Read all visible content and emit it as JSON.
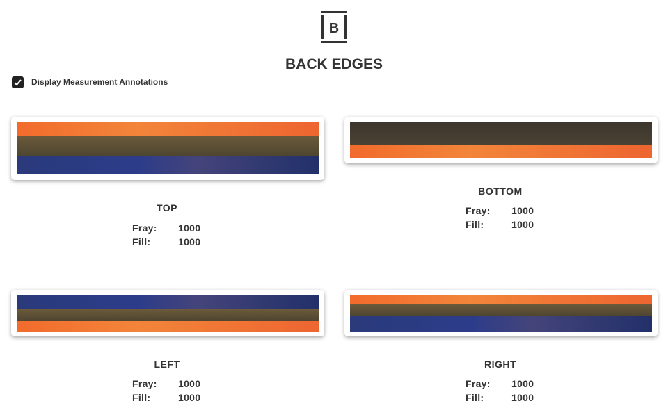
{
  "header": {
    "logo_letter": "B",
    "title": "BACK EDGES"
  },
  "options": {
    "annotations_label": "Display Measurement Annotations",
    "annotations_checked": true
  },
  "edges": [
    {
      "name": "TOP",
      "fray_label": "Fray:",
      "fray": "1000",
      "fill_label": "Fill:",
      "fill": "1000"
    },
    {
      "name": "BOTTOM",
      "fray_label": "Fray:",
      "fray": "1000",
      "fill_label": "Fill:",
      "fill": "1000"
    },
    {
      "name": "LEFT",
      "fray_label": "Fray:",
      "fray": "1000",
      "fill_label": "Fill:",
      "fill": "1000"
    },
    {
      "name": "RIGHT",
      "fray_label": "Fray:",
      "fray": "1000",
      "fill_label": "Fill:",
      "fill": "1000"
    }
  ],
  "colors": {
    "accent": "#f26b2c",
    "text": "#333333"
  }
}
